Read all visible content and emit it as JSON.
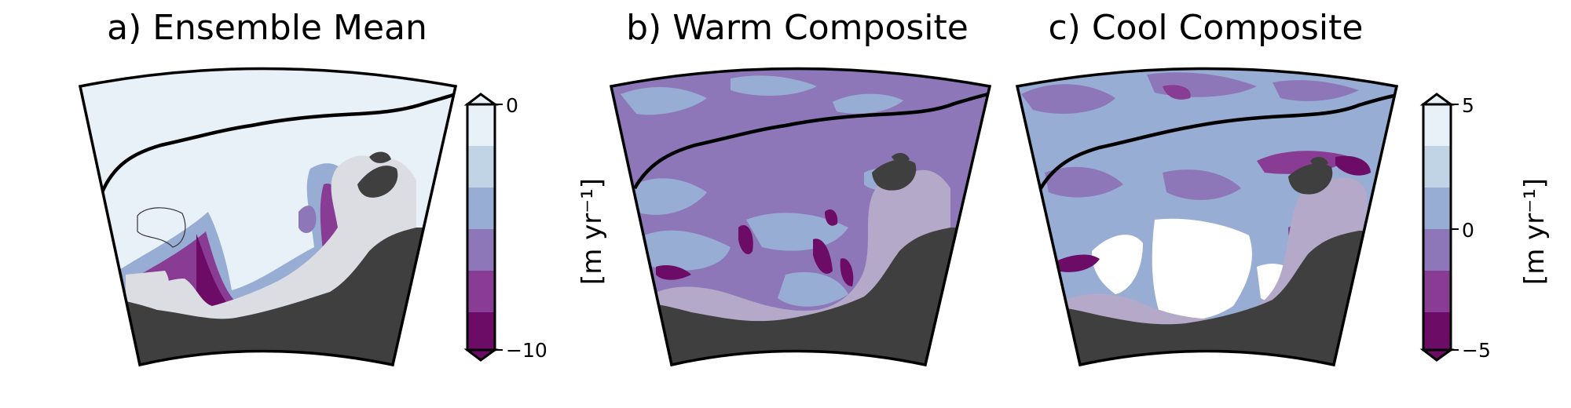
{
  "panels": [
    {
      "title": "a) Ensemble Mean"
    },
    {
      "title": "b) Warm Composite"
    },
    {
      "title": "c) Cool Composite"
    }
  ],
  "colorbars": [
    {
      "label": "[m yr⁻¹]",
      "ticks": [
        "0",
        "−10"
      ],
      "range": [
        -10,
        0
      ],
      "extend": "both",
      "levels": [
        "#6d0c66",
        "#883c93",
        "#8e77b8",
        "#98add3",
        "#c1d4e5",
        "#e8f0f8"
      ]
    },
    {
      "label": "[m yr⁻¹]",
      "ticks": [
        "5",
        "0",
        "−5"
      ],
      "range": [
        -5,
        5
      ],
      "extend": "both",
      "levels": [
        "#6d0c66",
        "#883c93",
        "#8e77b8",
        "#98add3",
        "#c1d4e5",
        "#e8f0f8"
      ]
    }
  ],
  "colors": {
    "land": "#3f3f3f",
    "grounded_ice_mean": "#dcdde2",
    "grounded_ice_composite": "#b5a9c9",
    "outline": "#000000"
  }
}
